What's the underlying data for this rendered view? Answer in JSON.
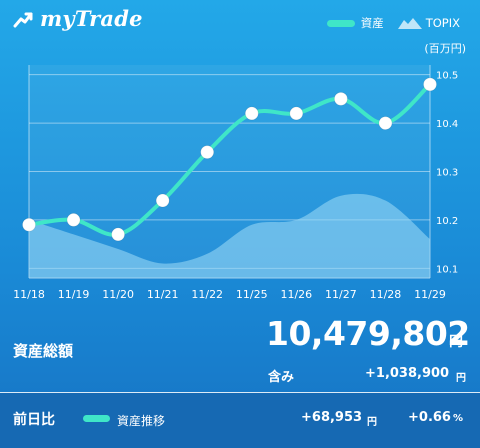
{
  "header": {
    "app_name": "myTrade",
    "legend_asset": "資産",
    "legend_topix": "TOPIX",
    "unit": "(百万円)"
  },
  "chart_data": {
    "type": "line",
    "categories": [
      "11/18",
      "11/19",
      "11/20",
      "11/21",
      "11/22",
      "11/25",
      "11/26",
      "11/27",
      "11/28",
      "11/29"
    ],
    "series": [
      {
        "name": "資産",
        "values": [
          10.19,
          10.2,
          10.17,
          10.24,
          10.34,
          10.42,
          10.42,
          10.45,
          10.4,
          10.48
        ]
      },
      {
        "name": "TOPIX",
        "values": [
          10.2,
          10.17,
          10.14,
          10.11,
          10.13,
          10.19,
          10.2,
          10.25,
          10.24,
          10.16
        ]
      }
    ],
    "ylim": [
      10.08,
      10.52
    ],
    "yticks": [
      "10.1",
      "10.2",
      "10.3",
      "10.4",
      "10.5"
    ],
    "grid": true,
    "colors": {
      "asset": "#3fe6c8",
      "topix_fill": "#8ed0ee"
    }
  },
  "summary": {
    "total_label": "資産総額",
    "total_value": "10,479,802",
    "total_unit": "円",
    "gain_label": "含み",
    "gain_value": "+1,038,900",
    "gain_unit": "円"
  },
  "daily": {
    "label": "前日比",
    "trend_label": "資産推移",
    "yen_change": "+68,953",
    "yen_unit": "円",
    "pct_change": "+0.66",
    "pct_unit": "%"
  }
}
